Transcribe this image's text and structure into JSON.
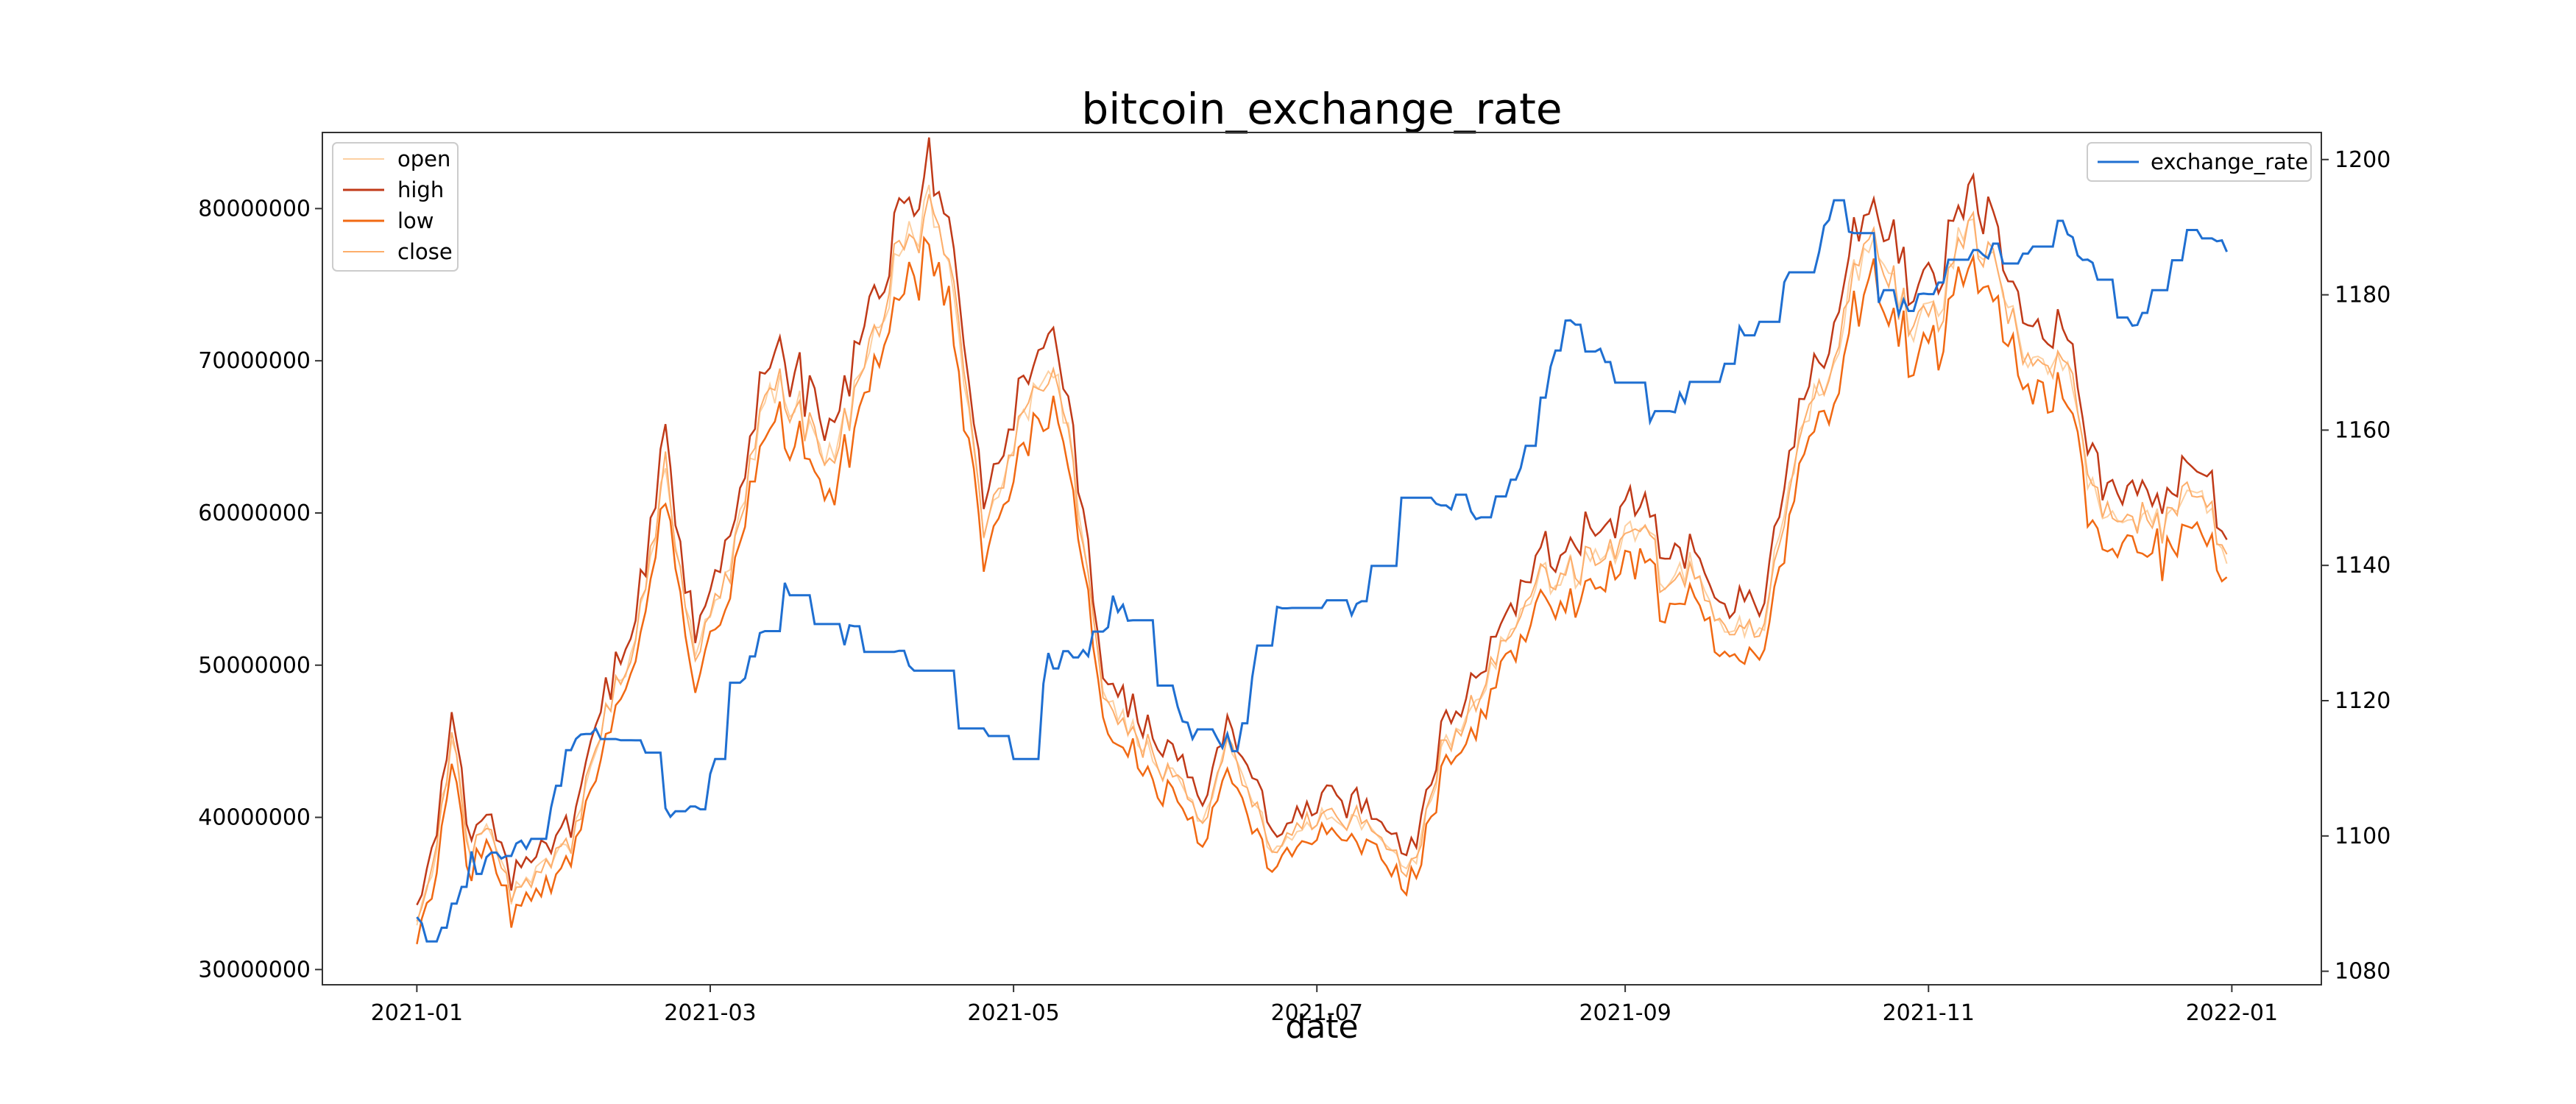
{
  "chart_data": {
    "type": "line",
    "title": "bitcoin_exchange_rate",
    "xlabel": "date",
    "ylabel": "",
    "y2label": "",
    "x_start": "2021-01-01",
    "x_end": "2021-12-31",
    "xlim": [
      "2020-12-13",
      "2022-01-19"
    ],
    "ylim": [
      29000000,
      85000000
    ],
    "y2lim": [
      1078,
      1204
    ],
    "x_ticks": [
      "2021-01",
      "2021-03",
      "2021-05",
      "2021-07",
      "2021-09",
      "2021-11",
      "2022-01"
    ],
    "y_ticks": [
      "30000000",
      "40000000",
      "50000000",
      "60000000",
      "70000000",
      "80000000"
    ],
    "y2_ticks": [
      "1080",
      "1100",
      "1120",
      "1140",
      "1160",
      "1180",
      "1200"
    ],
    "legend_left": [
      "open",
      "high",
      "low",
      "close"
    ],
    "legend_right": [
      "exchange_rate"
    ],
    "price_keypoints": [
      [
        "2021-01-01",
        32800000
      ],
      [
        "2021-01-05",
        38000000
      ],
      [
        "2021-01-08",
        45500000
      ],
      [
        "2021-01-12",
        37500000
      ],
      [
        "2021-01-15",
        40000000
      ],
      [
        "2021-01-20",
        35000000
      ],
      [
        "2021-01-25",
        36500000
      ],
      [
        "2021-02-01",
        38500000
      ],
      [
        "2021-02-08",
        47000000
      ],
      [
        "2021-02-14",
        52000000
      ],
      [
        "2021-02-20",
        63000000
      ],
      [
        "2021-02-26",
        50000000
      ],
      [
        "2021-03-05",
        56500000
      ],
      [
        "2021-03-13",
        69000000
      ],
      [
        "2021-03-20",
        66000000
      ],
      [
        "2021-03-26",
        63000000
      ],
      [
        "2021-04-01",
        70000000
      ],
      [
        "2021-04-07",
        76000000
      ],
      [
        "2021-04-14",
        80000000
      ],
      [
        "2021-04-20",
        73000000
      ],
      [
        "2021-04-25",
        58000000
      ],
      [
        "2021-04-30",
        64000000
      ],
      [
        "2021-05-06",
        69000000
      ],
      [
        "2021-05-10",
        70000000
      ],
      [
        "2021-05-13",
        63000000
      ],
      [
        "2021-05-19",
        48000000
      ],
      [
        "2021-05-25",
        46000000
      ],
      [
        "2021-06-01",
        43000000
      ],
      [
        "2021-06-08",
        40000000
      ],
      [
        "2021-06-13",
        44500000
      ],
      [
        "2021-06-22",
        38000000
      ],
      [
        "2021-06-28",
        40000000
      ],
      [
        "2021-07-05",
        40000000
      ],
      [
        "2021-07-12",
        39500000
      ],
      [
        "2021-07-20",
        36500000
      ],
      [
        "2021-07-26",
        44000000
      ],
      [
        "2021-07-31",
        46500000
      ],
      [
        "2021-08-07",
        51000000
      ],
      [
        "2021-08-14",
        55500000
      ],
      [
        "2021-08-20",
        56000000
      ],
      [
        "2021-08-28",
        57000000
      ],
      [
        "2021-09-05",
        60000000
      ],
      [
        "2021-09-09",
        55000000
      ],
      [
        "2021-09-15",
        56500000
      ],
      [
        "2021-09-21",
        52000000
      ],
      [
        "2021-09-28",
        52000000
      ],
      [
        "2021-10-02",
        58500000
      ],
      [
        "2021-10-07",
        66000000
      ],
      [
        "2021-10-12",
        68000000
      ],
      [
        "2021-10-16",
        74500000
      ],
      [
        "2021-10-21",
        78000000
      ],
      [
        "2021-10-28",
        73000000
      ],
      [
        "2021-11-03",
        73000000
      ],
      [
        "2021-11-09",
        79500000
      ],
      [
        "2021-11-14",
        77000000
      ],
      [
        "2021-11-20",
        70000000
      ],
      [
        "2021-11-26",
        70500000
      ],
      [
        "2021-11-30",
        69000000
      ],
      [
        "2021-12-04",
        61000000
      ],
      [
        "2021-12-10",
        60000000
      ],
      [
        "2021-12-16",
        59000000
      ],
      [
        "2021-12-22",
        60500000
      ],
      [
        "2021-12-27",
        61000000
      ],
      [
        "2021-12-31",
        57000000
      ]
    ],
    "exchange_rate_keypoints": [
      [
        "2021-01-01",
        1088
      ],
      [
        "2021-01-05",
        1084
      ],
      [
        "2021-01-12",
        1096
      ],
      [
        "2021-01-18",
        1098
      ],
      [
        "2021-01-25",
        1098
      ],
      [
        "2021-02-01",
        1113
      ],
      [
        "2021-02-08",
        1115
      ],
      [
        "2021-02-15",
        1114
      ],
      [
        "2021-02-20",
        1104
      ],
      [
        "2021-02-28",
        1106
      ],
      [
        "2021-03-05",
        1121
      ],
      [
        "2021-03-10",
        1126
      ],
      [
        "2021-03-15",
        1138
      ],
      [
        "2021-03-22",
        1131
      ],
      [
        "2021-03-27",
        1130
      ],
      [
        "2021-04-03",
        1128
      ],
      [
        "2021-04-10",
        1126
      ],
      [
        "2021-04-16",
        1118
      ],
      [
        "2021-04-24",
        1116
      ],
      [
        "2021-05-01",
        1110
      ],
      [
        "2021-05-08",
        1126
      ],
      [
        "2021-05-15",
        1126
      ],
      [
        "2021-05-22",
        1135
      ],
      [
        "2021-05-31",
        1122
      ],
      [
        "2021-06-08",
        1114
      ],
      [
        "2021-06-15",
        1114
      ],
      [
        "2021-06-22",
        1136
      ],
      [
        "2021-07-01",
        1133
      ],
      [
        "2021-07-10",
        1135
      ],
      [
        "2021-07-18",
        1149
      ],
      [
        "2021-07-25",
        1150
      ],
      [
        "2021-08-03",
        1148
      ],
      [
        "2021-08-10",
        1152
      ],
      [
        "2021-08-20",
        1178
      ],
      [
        "2021-08-30",
        1167
      ],
      [
        "2021-09-06",
        1160
      ],
      [
        "2021-09-12",
        1165
      ],
      [
        "2021-09-20",
        1170
      ],
      [
        "2021-09-30",
        1180
      ],
      [
        "2021-10-10",
        1188
      ],
      [
        "2021-10-14",
        1196
      ],
      [
        "2021-10-20",
        1182
      ],
      [
        "2021-10-28",
        1177
      ],
      [
        "2021-11-05",
        1184
      ],
      [
        "2021-11-13",
        1186
      ],
      [
        "2021-11-20",
        1185
      ],
      [
        "2021-11-28",
        1192
      ],
      [
        "2021-12-04",
        1183
      ],
      [
        "2021-12-12",
        1174
      ],
      [
        "2021-12-20",
        1186
      ],
      [
        "2021-12-25",
        1189
      ],
      [
        "2021-12-31",
        1187
      ]
    ]
  },
  "colors": {
    "open": "#fdd0a2",
    "high": "#c03a18",
    "low": "#f16913",
    "close": "#fdae6b",
    "exchange_rate": "#1f6fd1",
    "axis": "#333333"
  }
}
